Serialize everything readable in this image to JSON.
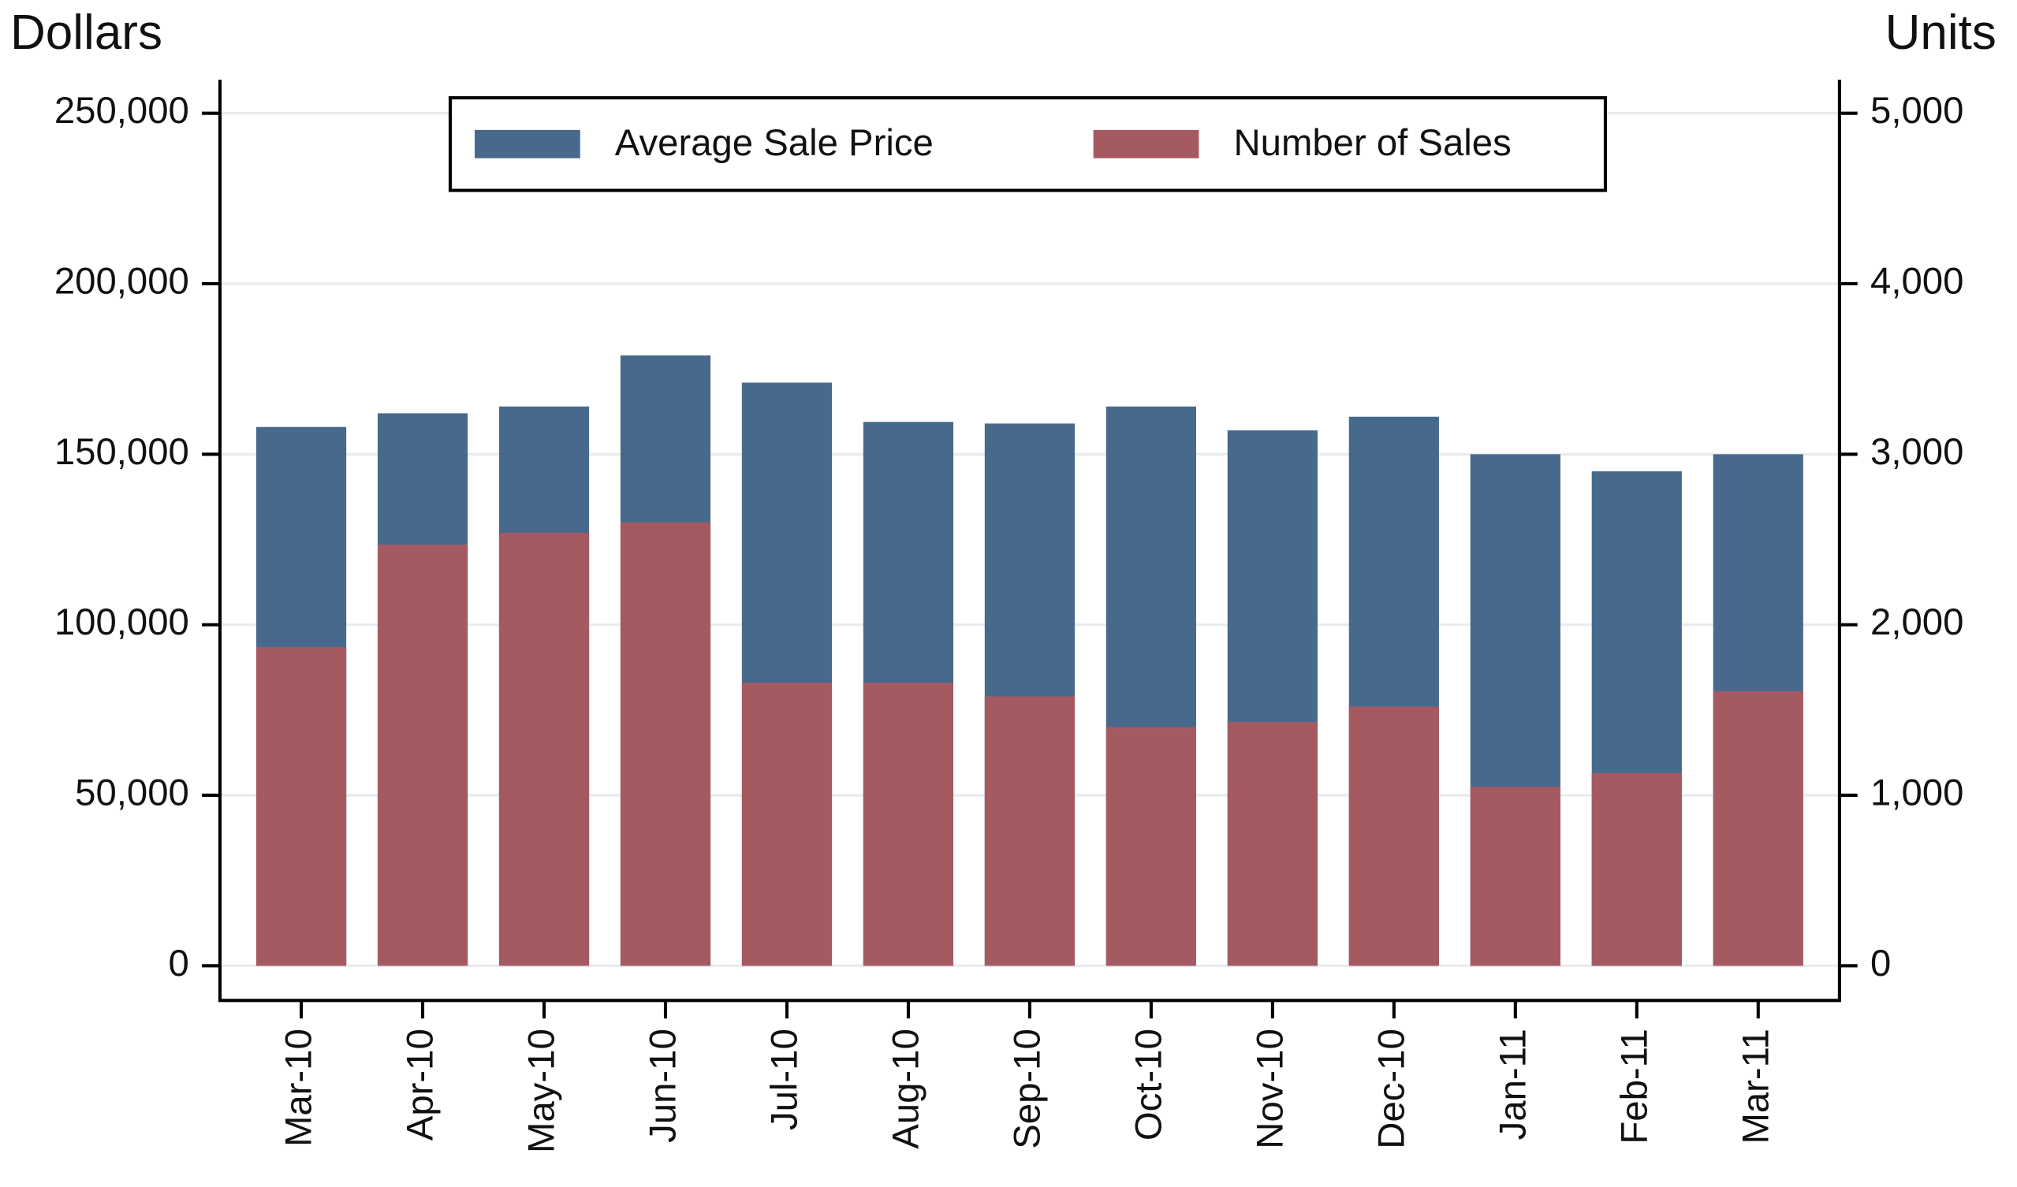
{
  "chart_data": {
    "type": "bar",
    "y_label": "Dollars",
    "y2_label": "Units",
    "categories": [
      "Mar-10",
      "Apr-10",
      "May-10",
      "Jun-10",
      "Jul-10",
      "Aug-10",
      "Sep-10",
      "Oct-10",
      "Nov-10",
      "Dec-10",
      "Jan-11",
      "Feb-11",
      "Mar-11"
    ],
    "series": [
      {
        "name": "Average Sale Price",
        "color": "#476a8c",
        "values": [
          158000,
          162000,
          164000,
          179000,
          171000,
          159500,
          159000,
          164000,
          157000,
          161000,
          150000,
          145000,
          150000
        ]
      },
      {
        "name": "Number of Sales",
        "color": "#a55a62",
        "axis": "y2",
        "values": [
          1870,
          2470,
          2540,
          2600,
          1660,
          1660,
          1580,
          1400,
          1430,
          1520,
          1050,
          1130,
          1610
        ]
      }
    ],
    "ylim": [
      0,
      250000
    ],
    "yticks": [
      0,
      {
        "value": 50000,
        "label": "50,000"
      },
      {
        "value": 100000,
        "label": "100,000"
      },
      {
        "value": 150000,
        "label": "150,000"
      },
      {
        "value": 200000,
        "label": "200,000"
      },
      {
        "value": 250000,
        "label": "250,000"
      }
    ],
    "y2lim": [
      0,
      5000
    ],
    "y2ticks": [
      0,
      {
        "value": 1000,
        "label": "1,000"
      },
      {
        "value": 2000,
        "label": "2,000"
      },
      {
        "value": 3000,
        "label": "3,000"
      },
      {
        "value": 4000,
        "label": "4,000"
      },
      {
        "value": 5000,
        "label": "5,000"
      }
    ],
    "grid": true,
    "legend": "top"
  }
}
